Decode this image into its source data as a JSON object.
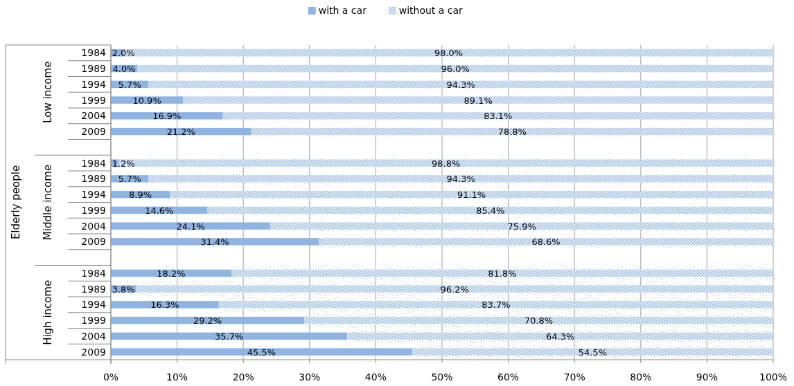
{
  "chart_data": {
    "type": "bar",
    "orientation": "horizontal",
    "stacked": true,
    "annotations": [
      "Low income",
      "Middle income",
      "High income",
      "Elderly people"
    ],
    "categories": [
      "1984",
      "1989",
      "1994",
      "1999",
      "2004",
      "2009",
      null,
      "1984",
      "1989",
      "1994",
      "1999",
      "2004",
      "2009",
      null,
      "1984",
      "1989",
      "1994",
      "1999",
      "2004",
      "2009"
    ],
    "series": [
      {
        "name": "with a car",
        "color": "#8eb4e3",
        "values": [
          2.0,
          4.0,
          5.7,
          10.9,
          16.9,
          21.2,
          null,
          1.2,
          5.7,
          8.9,
          14.6,
          24.1,
          31.4,
          null,
          18.2,
          3.8,
          16.3,
          29.2,
          35.7,
          45.5
        ],
        "value_labels": [
          "2.0%",
          "4.0%",
          "5.7%",
          "10.9%",
          "16.9%",
          "21.2%",
          null,
          "1.2%",
          "5.7%",
          "8.9%",
          "14.6%",
          "24.1%",
          "31.4%",
          null,
          "18.2%",
          "3.8%",
          "16.3%",
          "29.2%",
          "35.7%",
          "45.5%"
        ]
      },
      {
        "name": "without a car",
        "color": "#8eb4e3",
        "values": [
          98.0,
          96.0,
          94.3,
          89.1,
          83.1,
          78.8,
          null,
          98.8,
          94.3,
          91.1,
          85.4,
          75.9,
          68.6,
          null,
          81.8,
          96.2,
          83.7,
          70.8,
          64.3,
          54.5
        ],
        "value_labels": [
          "98.0%",
          "96.0%",
          "94.3%",
          "89.1%",
          "83.1%",
          "78.8%",
          null,
          "98.8%",
          "94.3%",
          "91.1%",
          "85.4%",
          "75.9%",
          "68.6%",
          null,
          "81.8%",
          "96.2%",
          "83.7%",
          "70.8%",
          "64.3%",
          "54.5%"
        ]
      }
    ],
    "xlim": [
      0,
      100
    ],
    "xticks": [
      {
        "value": 0,
        "label": "0%"
      },
      {
        "value": 10,
        "label": "10%"
      },
      {
        "value": 20,
        "label": "20%"
      },
      {
        "value": 30,
        "label": "30%"
      },
      {
        "value": 40,
        "label": "40%"
      },
      {
        "value": 50,
        "label": "50%"
      },
      {
        "value": 60,
        "label": "60%"
      },
      {
        "value": 70,
        "label": "70%"
      },
      {
        "value": 80,
        "label": "80%"
      },
      {
        "value": 90,
        "label": "90%"
      },
      {
        "value": 100,
        "label": "100%"
      }
    ],
    "grid": "x",
    "legend": "top"
  }
}
